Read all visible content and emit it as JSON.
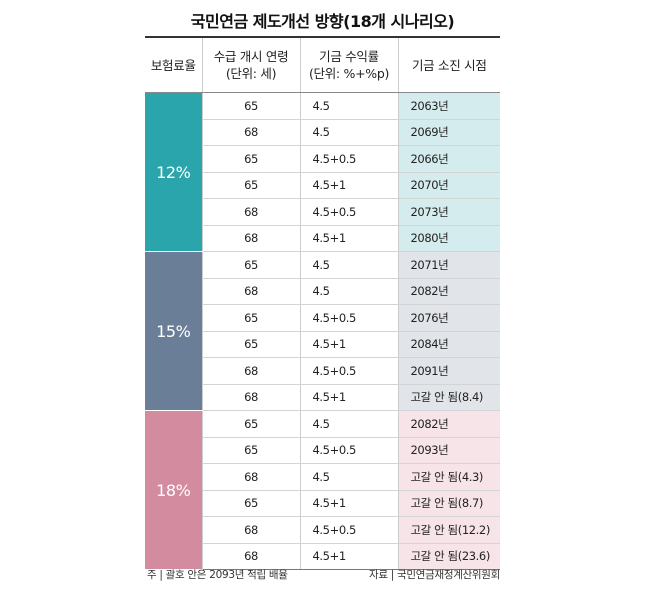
{
  "title": "국민연금 제도개선 방향(18개 시나리오)",
  "headers": {
    "rate": "보험료율",
    "age_line1": "수급 개시 연령",
    "age_line2": "(단위: 세)",
    "return_line1": "기금 수익률",
    "return_line2": "(단위: %+%p)",
    "depletion": "기금 소진 시점"
  },
  "groups": [
    {
      "rate": "12%",
      "color": "#2aa5ab",
      "rows": [
        {
          "age": "65",
          "return": "4.5",
          "depletion": "2063년"
        },
        {
          "age": "68",
          "return": "4.5",
          "depletion": "2069년"
        },
        {
          "age": "65",
          "return": "4.5+0.5",
          "depletion": "2066년"
        },
        {
          "age": "65",
          "return": "4.5+1",
          "depletion": "2070년"
        },
        {
          "age": "68",
          "return": "4.5+0.5",
          "depletion": "2073년"
        },
        {
          "age": "68",
          "return": "4.5+1",
          "depletion": "2080년"
        }
      ]
    },
    {
      "rate": "15%",
      "color": "#6b7e98",
      "rows": [
        {
          "age": "65",
          "return": "4.5",
          "depletion": "2071년"
        },
        {
          "age": "68",
          "return": "4.5",
          "depletion": "2082년"
        },
        {
          "age": "65",
          "return": "4.5+0.5",
          "depletion": "2076년"
        },
        {
          "age": "65",
          "return": "4.5+1",
          "depletion": "2084년"
        },
        {
          "age": "68",
          "return": "4.5+0.5",
          "depletion": "2091년"
        },
        {
          "age": "68",
          "return": "4.5+1",
          "depletion": "고갈 안 됨(8.4)"
        }
      ]
    },
    {
      "rate": "18%",
      "color": "#d38ba0",
      "rows": [
        {
          "age": "65",
          "return": "4.5",
          "depletion": "2082년"
        },
        {
          "age": "65",
          "return": "4.5+0.5",
          "depletion": "2093년"
        },
        {
          "age": "68",
          "return": "4.5",
          "depletion": "고갈 안 됨(4.3)"
        },
        {
          "age": "65",
          "return": "4.5+1",
          "depletion": "고갈 안 됨(8.7)"
        },
        {
          "age": "68",
          "return": "4.5+0.5",
          "depletion": "고갈 안 됨(12.2)"
        },
        {
          "age": "68",
          "return": "4.5+1",
          "depletion": "고갈 안 됨(23.6)"
        }
      ]
    }
  ],
  "footnote": "주 | 괄호 안은 2093년 적립 배율",
  "source": "자료 | 국민연금재정계산위원회"
}
